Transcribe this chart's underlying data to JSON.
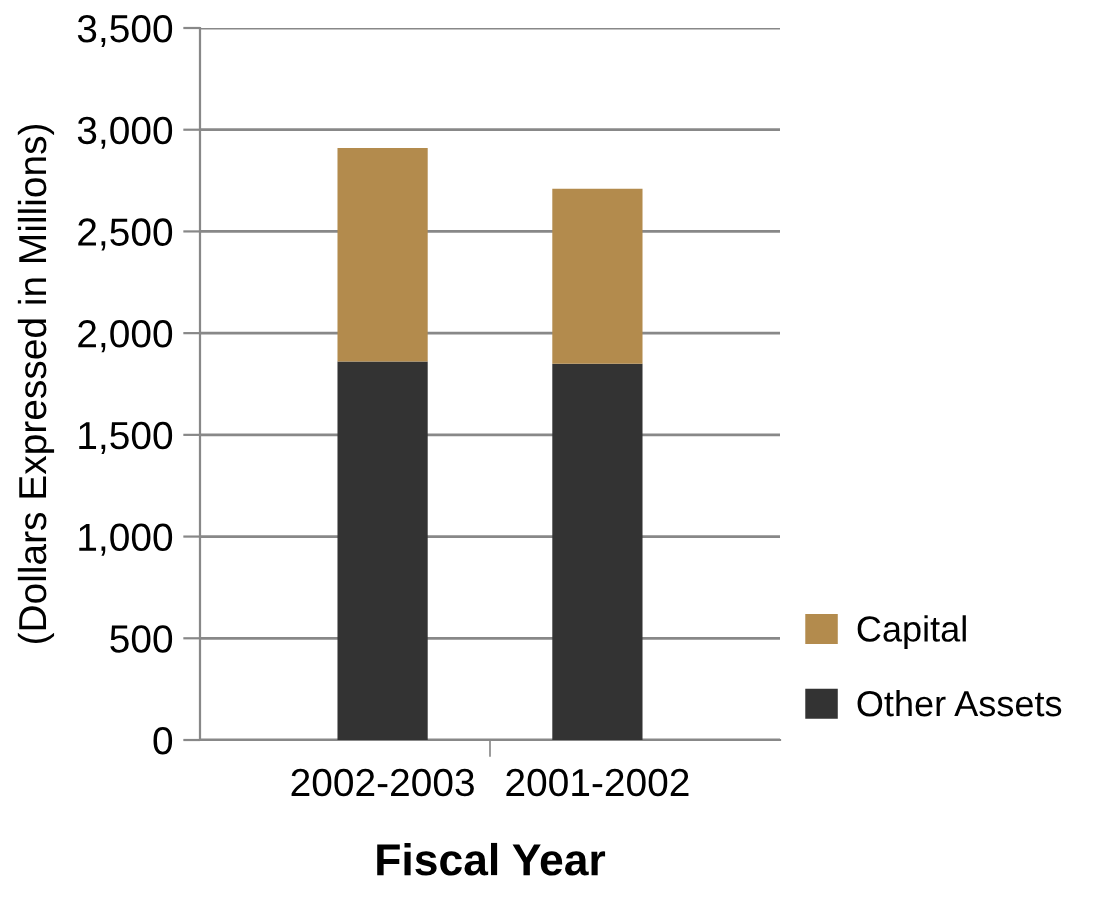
{
  "chart_data": {
    "type": "bar",
    "stacked": true,
    "xlabel": "Fiscal Year",
    "ylabel": "(Dollars Expressed in Millions)",
    "categories": [
      "2002-2003",
      "2001-2002"
    ],
    "series": [
      {
        "name": "Other Assets",
        "color": "#333333",
        "values": [
          1860,
          1850
        ]
      },
      {
        "name": "Capital",
        "color": "#b38b4d",
        "values": [
          1050,
          860
        ]
      }
    ],
    "ylim": [
      0,
      3500
    ],
    "yticks": [
      {
        "value": 0,
        "label": "0"
      },
      {
        "value": 500,
        "label": "500"
      },
      {
        "value": 1000,
        "label": "1,000"
      },
      {
        "value": 1500,
        "label": "1,500"
      },
      {
        "value": 2000,
        "label": "2,000"
      },
      {
        "value": 2500,
        "label": "2,500"
      },
      {
        "value": 3000,
        "label": "3,000"
      },
      {
        "value": 3500,
        "label": "3,500"
      }
    ],
    "grid": "y",
    "legend": "right"
  }
}
